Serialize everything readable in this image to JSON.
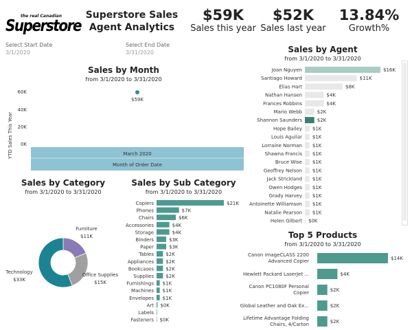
{
  "logo": {
    "small": "the real Canadian",
    "big": "Superstore"
  },
  "title": "Superstore Sales Agent Analytics",
  "kpis": [
    {
      "value": "$59K",
      "label": "Sales this year"
    },
    {
      "value": "$52K",
      "label": "Sales last year"
    },
    {
      "value": "13.84%",
      "label": "Growth%"
    }
  ],
  "filters": {
    "start": {
      "label": "Select Start Date",
      "value": "3/1/2020"
    },
    "end": {
      "label": "Select End Date",
      "value": "3/31/2020"
    }
  },
  "colors": {
    "teal": "#4e9a8f",
    "teal_dark": "#3e7d72",
    "light_blue": "#8ec3d3",
    "light_teal": "#a9cdc5",
    "light_gray": "#e8e8e8",
    "donut_teal": "#1b8392",
    "donut_purple": "#8a7ab5",
    "donut_gray": "#a0a0a0"
  },
  "sales_by_month": {
    "title": "Sales by Month",
    "subtitle": "from 3/1/2020 to 3/31/2020",
    "ylabel": "YTD Sales This Year",
    "ticks": [
      "60K",
      "40K",
      "20K",
      "0K"
    ],
    "point_label": "$59K",
    "band_label": "March 2020",
    "xlabel": "Month of Order Date"
  },
  "sales_by_agent": {
    "title": "Sales by Agent",
    "subtitle": "from 3/1/2020 to 3/31/2020"
  },
  "sales_by_category": {
    "title": "Sales by Category",
    "subtitle": "from 3/1/2020 to 3/31/2020"
  },
  "sales_by_subcategory": {
    "title": "Sales by Sub Category",
    "subtitle": "from 3/1/2020 to 3/31/2020"
  },
  "top5": {
    "title": "Top 5 Products",
    "subtitle": "from 3/1/2020 to 3/31/2020"
  },
  "chart_data": [
    {
      "type": "line",
      "title": "Sales by Month",
      "ylabel": "YTD Sales This Year",
      "xlabel": "Month of Order Date",
      "categories": [
        "March 2020"
      ],
      "values": [
        59000
      ],
      "ylim": [
        0,
        70000
      ]
    },
    {
      "type": "bar",
      "title": "Sales by Agent",
      "categories": [
        "Joan Nguyen",
        "Santiago Howard",
        "Elias Hart",
        "Nathan Hansen",
        "Frances Robbins",
        "Mario Webb",
        "Shannon Saunders",
        "Hope Bailey",
        "Louis Aguilar",
        "Lorraine Norman",
        "Shawna Francis",
        "Bruce Wise",
        "Geoffrey Nelson",
        "Jack Strickland",
        "Owen Hodges",
        "Grady Harvey",
        "Antoinette Williamson",
        "Natalie Pearson",
        "Helen Gilbert"
      ],
      "values": [
        16,
        11,
        8,
        4,
        4,
        2,
        2,
        1,
        1,
        1,
        1,
        1,
        1,
        1,
        1,
        1,
        1,
        1,
        0
      ],
      "labels": [
        "$16K",
        "$11K",
        "$8K",
        "$4K",
        "$4K",
        "$2K",
        "$2K",
        "$1K",
        "$1K",
        "$1K",
        "$1K",
        "$1K",
        "$1K",
        "$1K",
        "$1K",
        "$1K",
        "$1K",
        "$1K",
        "$0K"
      ],
      "highlight": {
        "Joan Nguyen": "light",
        "Shannon Saunders": "dark"
      }
    },
    {
      "type": "pie",
      "title": "Sales by Category",
      "categories": [
        "Furniture",
        "Office Supplies",
        "Technology"
      ],
      "values": [
        11,
        15,
        33
      ],
      "labels": [
        "$11K",
        "$15K",
        "$33K"
      ]
    },
    {
      "type": "bar",
      "title": "Sales by Sub Category",
      "categories": [
        "Copiers",
        "Phones",
        "Chairs",
        "Accessories",
        "Storage",
        "Binders",
        "Paper",
        "Tables",
        "Appliances",
        "Bookcases",
        "Supplies",
        "Furnishings",
        "Machines",
        "Envelopes",
        "Art",
        "Labels",
        "Fasteners"
      ],
      "values": [
        21,
        7,
        6,
        4,
        4,
        3,
        3,
        2,
        2,
        2,
        2,
        1,
        1,
        1,
        0.3,
        0.15,
        0.05
      ],
      "labels": [
        "$21K",
        "$7K",
        "$6K",
        "$4K",
        "$4K",
        "$3K",
        "$3K",
        "$2K",
        "$2K",
        "$2K",
        "$2K",
        "$1K",
        "$1K",
        "$1K",
        "$0K",
        "",
        "$0K"
      ]
    },
    {
      "type": "bar",
      "title": "Top 5 Products",
      "categories": [
        "Canon imageCLASS 2200 Advanced Copier",
        "Hewlett Packard LaserJet ...",
        "Canon PC1080F Personal Copier",
        "Global Leather and Oak Ex...",
        "Lifetime Advantage Folding Chairs, 4/Carton"
      ],
      "values": [
        14,
        4,
        2,
        2,
        2
      ],
      "labels": [
        "$14K",
        "$4K",
        "$2K",
        "$2K",
        "$2K"
      ]
    }
  ]
}
